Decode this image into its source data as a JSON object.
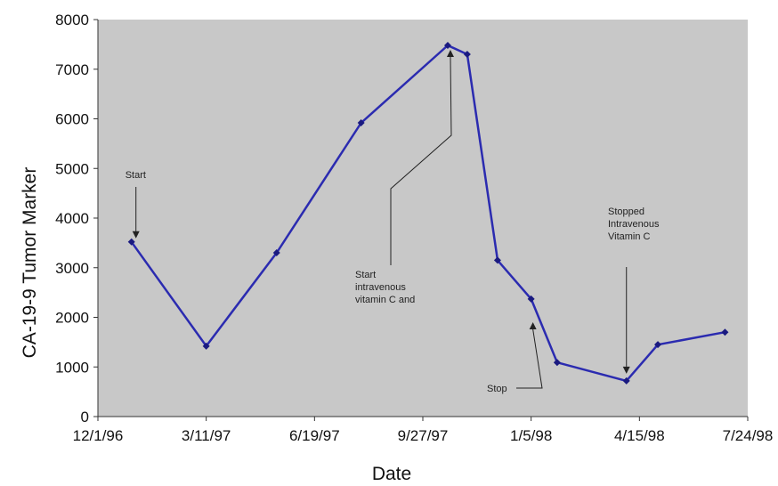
{
  "chart_data": {
    "type": "line",
    "title": "",
    "xlabel": "Date",
    "ylabel": "CA-19-9 Tumor Marker",
    "x_ticks": [
      "12/1/96",
      "3/11/97",
      "6/19/97",
      "9/27/97",
      "1/5/98",
      "4/15/98",
      "7/24/98"
    ],
    "xlim": [
      "1996-12-01",
      "1998-07-24"
    ],
    "ylim": [
      0,
      8000
    ],
    "y_ticks": [
      0,
      1000,
      2000,
      3000,
      4000,
      5000,
      6000,
      7000,
      8000
    ],
    "grid": false,
    "plot_background": "#c8c8c8",
    "series": [
      {
        "color": "#2b2bb0",
        "x": [
          "1997-01-01",
          "1997-03-11",
          "1997-05-15",
          "1997-08-01",
          "1997-10-20",
          "1997-11-07",
          "1997-12-05",
          "1998-01-05",
          "1998-01-29",
          "1998-04-03",
          "1998-05-02",
          "1998-07-03"
        ],
        "y": [
          3520,
          1420,
          3300,
          5920,
          7480,
          7300,
          3150,
          2370,
          1090,
          720,
          1450,
          1700
        ]
      }
    ],
    "annotations": [
      {
        "lines": [
          "Start"
        ],
        "x": "1997-01-01",
        "y": 3520
      },
      {
        "lines": [
          "Start",
          "intravenous",
          "vitamin C and"
        ],
        "x": "1997-10-20",
        "y": 7480
      },
      {
        "lines": [
          "Stop"
        ],
        "x": "1998-01-05",
        "y": 2370
      },
      {
        "lines": [
          "Stopped",
          "Intravenous",
          "Vitamin C"
        ],
        "x": "1998-04-03",
        "y": 720
      }
    ]
  }
}
